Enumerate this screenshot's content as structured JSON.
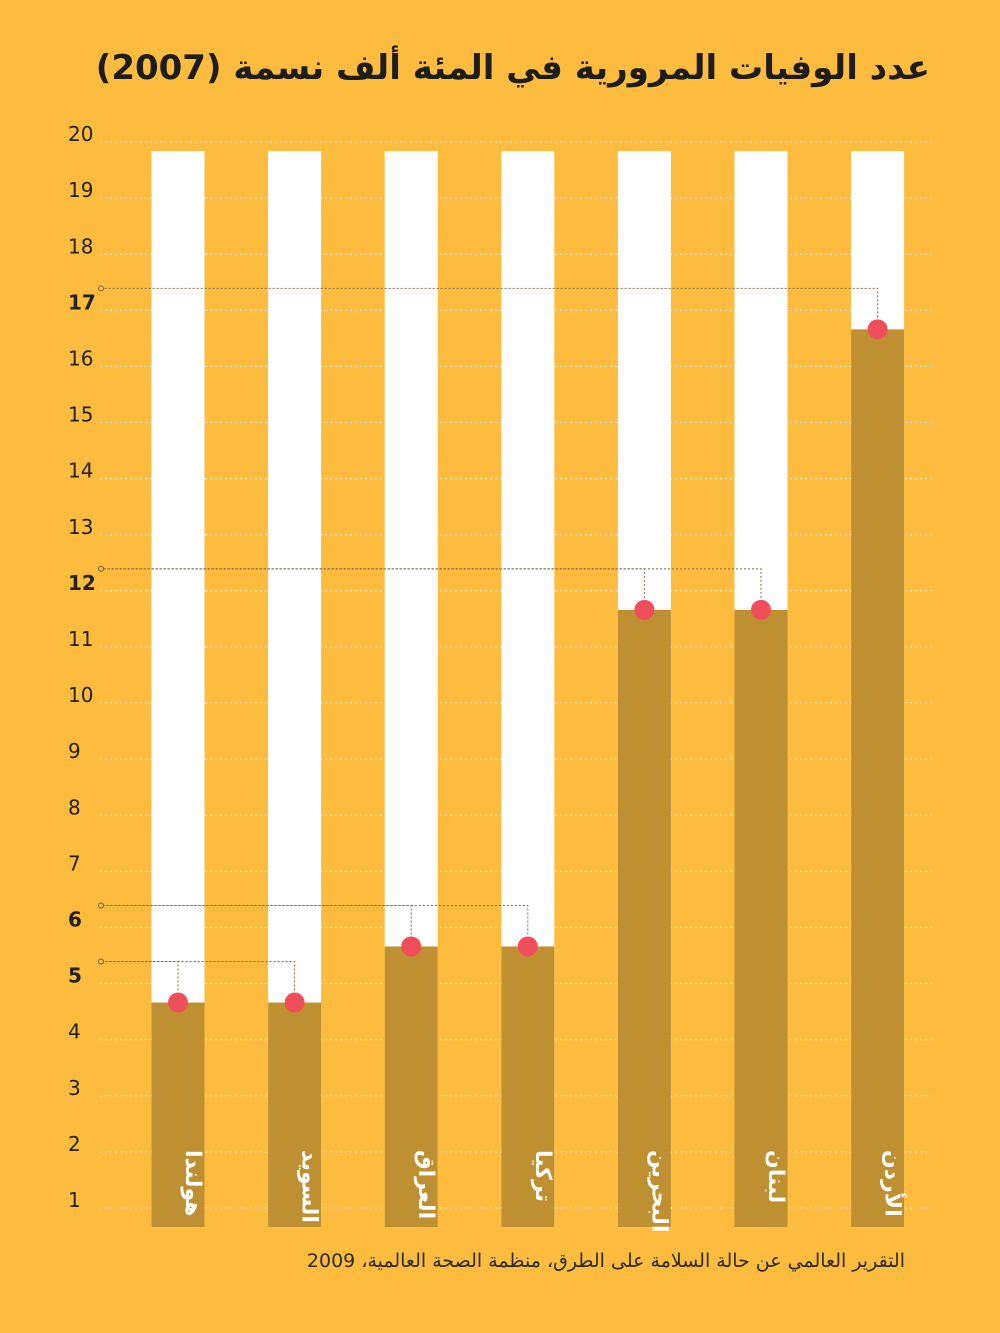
{
  "chart_data": {
    "type": "bar",
    "title": "عدد الوفيات المرورية في المئة ألف نسمة (2007)",
    "source": "التقرير العالمي عن حالة السلامة على الطرق، منظمة الصحة العالمية، 2009",
    "categories": [
      "هولندا",
      "السويد",
      "العراق",
      "تركيا",
      "البحرين",
      "لبنان",
      "الأردن"
    ],
    "values": [
      5,
      5,
      6,
      6,
      12,
      12,
      17
    ],
    "ylim": [
      0,
      20
    ],
    "yticks": [
      1,
      2,
      3,
      4,
      5,
      6,
      7,
      8,
      9,
      10,
      11,
      12,
      13,
      14,
      15,
      16,
      17,
      18,
      19,
      20
    ],
    "highlighted_ticks": [
      5,
      6,
      12,
      17
    ],
    "grid": true,
    "colors": {
      "background": "#FDBC3E",
      "bar_fill": "#BF9032",
      "bar_track": "#FFFFFF",
      "marker": "#F04E5A",
      "leader_line": "#7a6a4a"
    }
  }
}
